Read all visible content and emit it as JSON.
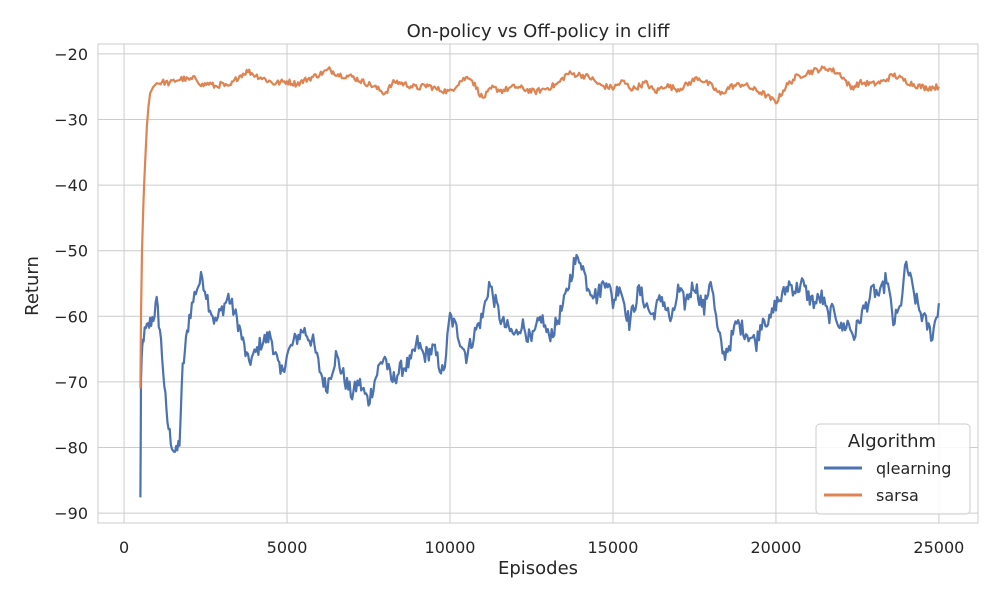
{
  "chart_data": {
    "type": "line",
    "title": "On-policy vs Off-policy in cliff",
    "xlabel": "Episodes",
    "ylabel": "Return",
    "xlim": [
      -800,
      26200
    ],
    "ylim": [
      -91.5,
      -18.5
    ],
    "xticks": [
      0,
      5000,
      10000,
      15000,
      20000,
      25000
    ],
    "yticks": [
      -20,
      -30,
      -40,
      -50,
      -60,
      -70,
      -80,
      -90
    ],
    "grid": true,
    "legend": {
      "title": "Algorithm",
      "placement": "lower-right"
    },
    "series": [
      {
        "name": "qlearning",
        "color": "#4c72b0",
        "x": [
          500,
          520,
          560,
          600,
          700,
          800,
          900,
          1000,
          1100,
          1200,
          1300,
          1400,
          1500,
          1600,
          1700,
          1800,
          1900,
          2000,
          2200,
          2400,
          2600,
          2800,
          3000,
          3200,
          3500,
          3800,
          4000,
          4200,
          4500,
          4800,
          5000,
          5200,
          5500,
          5800,
          6000,
          6200,
          6500,
          6800,
          7000,
          7200,
          7500,
          7800,
          8000,
          8200,
          8500,
          8800,
          9000,
          9200,
          9500,
          9800,
          10000,
          10200,
          10500,
          10800,
          11000,
          11200,
          11400,
          11600,
          11800,
          12000,
          12200,
          12500,
          12800,
          13000,
          13200,
          13500,
          13800,
          14000,
          14200,
          14500,
          14800,
          15000,
          15200,
          15500,
          15800,
          16000,
          16200,
          16500,
          16800,
          17000,
          17200,
          17500,
          17800,
          18000,
          18200,
          18400,
          18600,
          18800,
          19000,
          19200,
          19400,
          19600,
          19800,
          20000,
          20200,
          20400,
          20600,
          20800,
          21000,
          21200,
          21400,
          21600,
          21800,
          22000,
          22200,
          22400,
          22600,
          22800,
          23000,
          23200,
          23400,
          23600,
          23800,
          24000,
          24200,
          24400,
          24600,
          24800,
          25000
        ],
        "y": [
          -88,
          -70,
          -65,
          -63,
          -62,
          -61,
          -60,
          -58,
          -62,
          -68,
          -75,
          -78,
          -80,
          -81,
          -79,
          -68,
          -64,
          -60,
          -56,
          -54,
          -58,
          -61,
          -59,
          -57,
          -61,
          -67,
          -66,
          -64,
          -63,
          -69,
          -66,
          -64,
          -62,
          -64,
          -68,
          -71,
          -66,
          -70,
          -72,
          -70,
          -73,
          -68,
          -66,
          -70,
          -68,
          -67,
          -64,
          -66,
          -65,
          -69,
          -60,
          -62,
          -66,
          -62,
          -60,
          -55,
          -58,
          -61,
          -62,
          -63,
          -61,
          -64,
          -60,
          -63,
          -62,
          -58,
          -52,
          -51,
          -55,
          -57,
          -54,
          -58,
          -55,
          -61,
          -56,
          -58,
          -60,
          -57,
          -61,
          -56,
          -58,
          -55,
          -59,
          -54,
          -62,
          -66,
          -64,
          -61,
          -62,
          -63,
          -64,
          -60,
          -61,
          -58,
          -57,
          -55,
          -56,
          -55,
          -57,
          -58,
          -57,
          -60,
          -59,
          -62,
          -61,
          -63,
          -60,
          -58,
          -56,
          -57,
          -54,
          -61,
          -59,
          -52,
          -56,
          -59,
          -61,
          -63,
          -58
        ],
        "note": ""
      },
      {
        "name": "sarsa",
        "color": "#dd8452",
        "x": [
          500,
          520,
          550,
          600,
          650,
          700,
          750,
          800,
          900,
          1000,
          1200,
          1400,
          1600,
          1800,
          2000,
          2200,
          2400,
          2600,
          2800,
          3000,
          3200,
          3500,
          3800,
          4000,
          4300,
          4600,
          5000,
          5300,
          5600,
          6000,
          6300,
          6600,
          7000,
          7300,
          7600,
          8000,
          8300,
          8600,
          9000,
          9300,
          9600,
          10000,
          10300,
          10600,
          11000,
          11300,
          11600,
          12000,
          12300,
          12600,
          13000,
          13300,
          13600,
          14000,
          14300,
          14600,
          15000,
          15300,
          15600,
          16000,
          16300,
          16600,
          17000,
          17300,
          17600,
          18000,
          18300,
          18600,
          19000,
          19300,
          19600,
          20000,
          20300,
          20600,
          21000,
          21300,
          21600,
          22000,
          22300,
          22600,
          23000,
          23300,
          23600,
          24000,
          24300,
          24600,
          25000
        ],
        "y": [
          -71,
          -60,
          -50,
          -42,
          -36,
          -31,
          -28,
          -26,
          -25,
          -24.5,
          -24.3,
          -24.5,
          -24,
          -23.8,
          -24,
          -23.7,
          -24.8,
          -24.5,
          -25,
          -24.6,
          -25.2,
          -23.5,
          -22.6,
          -23.2,
          -23.8,
          -24.5,
          -24.2,
          -24.6,
          -23.9,
          -23.1,
          -22.4,
          -23.2,
          -23.5,
          -24.2,
          -24.8,
          -26,
          -24.2,
          -24.6,
          -25.2,
          -24.8,
          -25.4,
          -25.8,
          -24.2,
          -23.4,
          -26.8,
          -25.2,
          -25.6,
          -25,
          -25.4,
          -25.8,
          -25.2,
          -24.6,
          -23,
          -23.2,
          -23.6,
          -24.8,
          -25.2,
          -24.2,
          -25.4,
          -24.4,
          -25.8,
          -24.8,
          -25.4,
          -24.6,
          -23.6,
          -24.8,
          -26.2,
          -25,
          -24.6,
          -25.4,
          -26,
          -27.4,
          -25,
          -23.6,
          -22.8,
          -22.4,
          -22.2,
          -23.2,
          -25.2,
          -24.4,
          -24.6,
          -24.2,
          -23.2,
          -24.2,
          -24.8,
          -25.2,
          -25
        ]
      }
    ]
  }
}
